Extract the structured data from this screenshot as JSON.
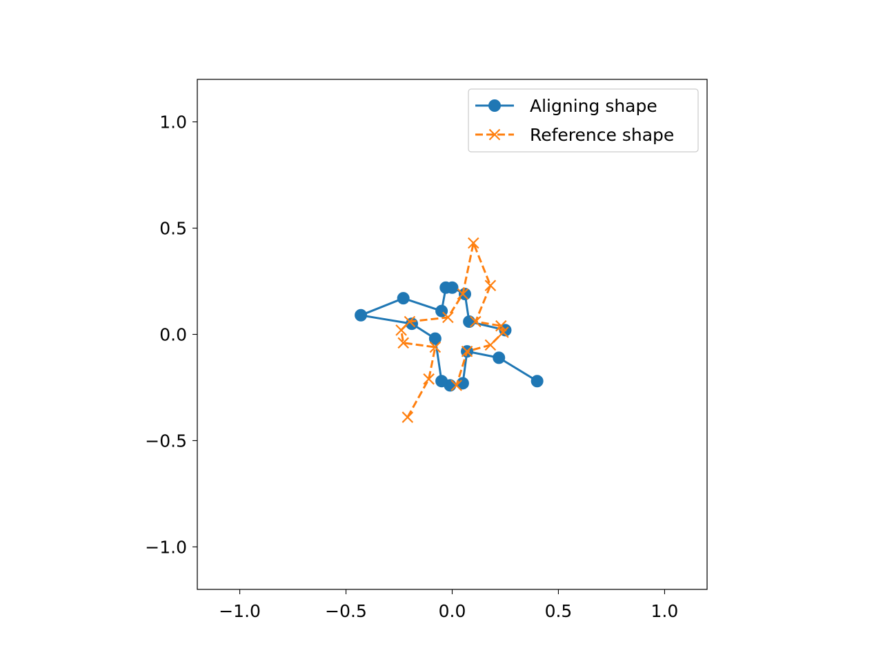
{
  "chart_data": {
    "type": "line",
    "xlim": [
      -1.2,
      1.2
    ],
    "ylim": [
      -1.2,
      1.2
    ],
    "xticks": [
      {
        "value": -1.0,
        "label": "−1.0"
      },
      {
        "value": -0.5,
        "label": "−0.5"
      },
      {
        "value": 0.0,
        "label": "0.0"
      },
      {
        "value": 0.5,
        "label": "0.5"
      },
      {
        "value": 1.0,
        "label": "1.0"
      }
    ],
    "yticks": [
      {
        "value": 1.0,
        "label": "1.0"
      },
      {
        "value": 0.5,
        "label": "0.5"
      },
      {
        "value": 0.0,
        "label": "0.0"
      },
      {
        "value": -0.5,
        "label": "−0.5"
      },
      {
        "value": -1.0,
        "label": "−1.0"
      }
    ],
    "grid": false,
    "legend_position": "top-right",
    "series": [
      {
        "name": "Aligning shape",
        "color": "#1f77b4",
        "marker": "circle",
        "linestyle": "solid",
        "points": [
          [
            0.4,
            -0.22
          ],
          [
            0.22,
            -0.11
          ],
          [
            0.07,
            -0.08
          ],
          [
            0.05,
            -0.23
          ],
          [
            -0.01,
            -0.24
          ],
          [
            -0.05,
            -0.22
          ],
          [
            -0.08,
            -0.02
          ],
          [
            -0.19,
            0.05
          ],
          [
            -0.43,
            0.09
          ],
          [
            -0.23,
            0.17
          ],
          [
            -0.05,
            0.11
          ],
          [
            -0.03,
            0.22
          ],
          [
            0.0,
            0.22
          ],
          [
            0.06,
            0.19
          ],
          [
            0.08,
            0.06
          ],
          [
            0.25,
            0.02
          ]
        ]
      },
      {
        "name": "Reference shape",
        "color": "#ff7f0e",
        "marker": "x",
        "linestyle": "dashed",
        "points": [
          [
            -0.21,
            -0.39
          ],
          [
            -0.11,
            -0.21
          ],
          [
            -0.08,
            -0.06
          ],
          [
            -0.23,
            -0.04
          ],
          [
            -0.24,
            0.02
          ],
          [
            -0.2,
            0.06
          ],
          [
            -0.02,
            0.08
          ],
          [
            0.05,
            0.19
          ],
          [
            0.1,
            0.43
          ],
          [
            0.18,
            0.23
          ],
          [
            0.11,
            0.06
          ],
          [
            0.23,
            0.04
          ],
          [
            0.24,
            0.01
          ],
          [
            0.18,
            -0.05
          ],
          [
            0.07,
            -0.08
          ],
          [
            0.02,
            -0.24
          ]
        ]
      }
    ]
  }
}
